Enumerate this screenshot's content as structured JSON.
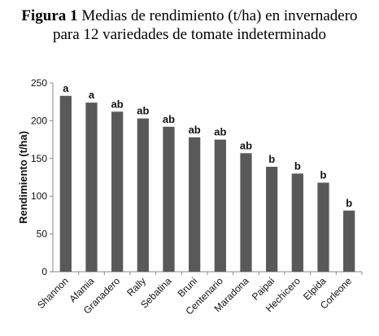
{
  "caption": {
    "label": "Figura 1",
    "line1": "Medias de rendimiento (t/ha) en invernadero",
    "line2": "para 12 variedades de tomate indeterminado"
  },
  "chart_data": {
    "type": "bar",
    "categories": [
      "Shannon",
      "Afamia",
      "Granadero",
      "Rally",
      "Sebatina",
      "Bruni",
      "Centenario",
      "Maradona",
      "Paipai",
      "Hechicero",
      "Elpida",
      "Corleone"
    ],
    "values": [
      233,
      224,
      212,
      203,
      192,
      178,
      175,
      157,
      139,
      130,
      118,
      81
    ],
    "labels": [
      "a",
      "a",
      "ab",
      "ab",
      "ab",
      "ab",
      "ab",
      "ab",
      "b",
      "b",
      "b",
      "b"
    ],
    "ylabel": "Rendimiento (t/ha)",
    "xlabel": "",
    "ylim": [
      0,
      250
    ],
    "yticks": [
      0,
      50,
      100,
      150,
      200,
      250
    ],
    "bar_color": "#595959",
    "grid": false
  }
}
